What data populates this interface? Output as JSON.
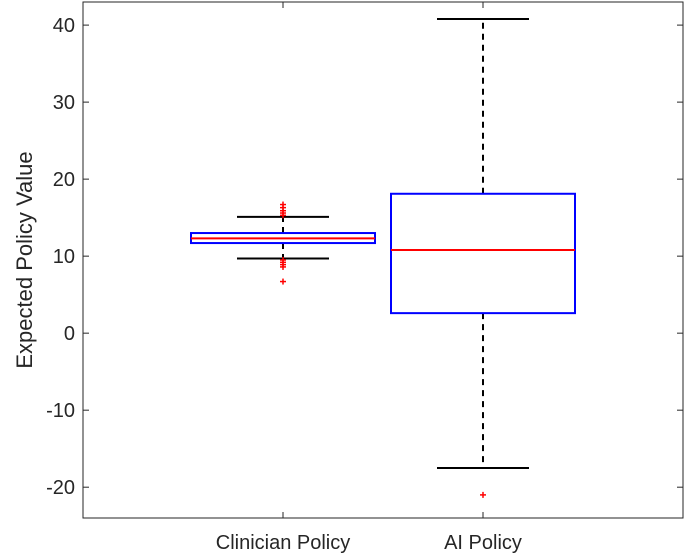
{
  "chart_data": {
    "type": "box",
    "title": "",
    "xlabel": "",
    "ylabel": "Expected Policy Value",
    "ylim": [
      -24,
      43
    ],
    "yticks": [
      40,
      30,
      20,
      10,
      0,
      -10,
      -20
    ],
    "ytick_labels": [
      "40",
      "30",
      "20",
      "10",
      "0",
      "-10",
      "-20"
    ],
    "categories": [
      "Clinician Policy",
      "AI Policy"
    ],
    "grid": false,
    "legend": "none",
    "colors": {
      "box": "#0000ff",
      "median": "#ff0000",
      "whisker": "#000000",
      "outlier": "#ff0000",
      "axis": "#262626"
    },
    "boxes": [
      {
        "category": "Clinician Policy",
        "whisker_low": 9.7,
        "q1": 11.7,
        "median": 12.3,
        "q3": 13.0,
        "whisker_high": 15.1,
        "outliers": [
          16.7,
          16.3,
          15.9,
          15.6,
          15.3,
          9.5,
          9.2,
          8.9,
          8.6,
          6.7
        ]
      },
      {
        "category": "AI Policy",
        "whisker_low": -17.5,
        "q1": 2.6,
        "median": 10.8,
        "q3": 18.1,
        "whisker_high": 40.8,
        "outliers": [
          -21.0
        ]
      }
    ]
  }
}
